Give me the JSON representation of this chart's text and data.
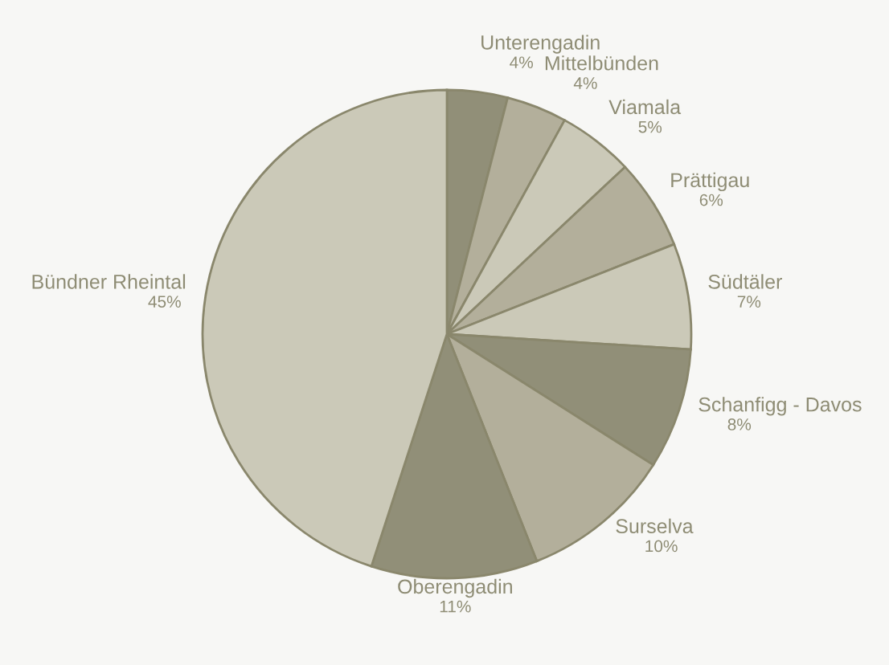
{
  "chart_data": {
    "type": "pie",
    "categories": [
      "Unterengadin",
      "Mittelbünden",
      "Viamala",
      "Prättigau",
      "Südtäler",
      "Schanfigg - Davos",
      "Surselva",
      "Oberengadin",
      "Bündner Rheintal"
    ],
    "values": [
      4,
      4,
      5,
      6,
      7,
      8,
      10,
      11,
      45
    ],
    "value_labels": [
      "4%",
      "4%",
      "5%",
      "6%",
      "7%",
      "8%",
      "10%",
      "11%",
      "45%"
    ],
    "colors": [
      "#918f78",
      "#b3af9b",
      "#cbc9b8",
      "#b3af9b",
      "#cbc9b8",
      "#918f78",
      "#b3af9b",
      "#918f78",
      "#cbc9b8"
    ],
    "legend": false
  }
}
